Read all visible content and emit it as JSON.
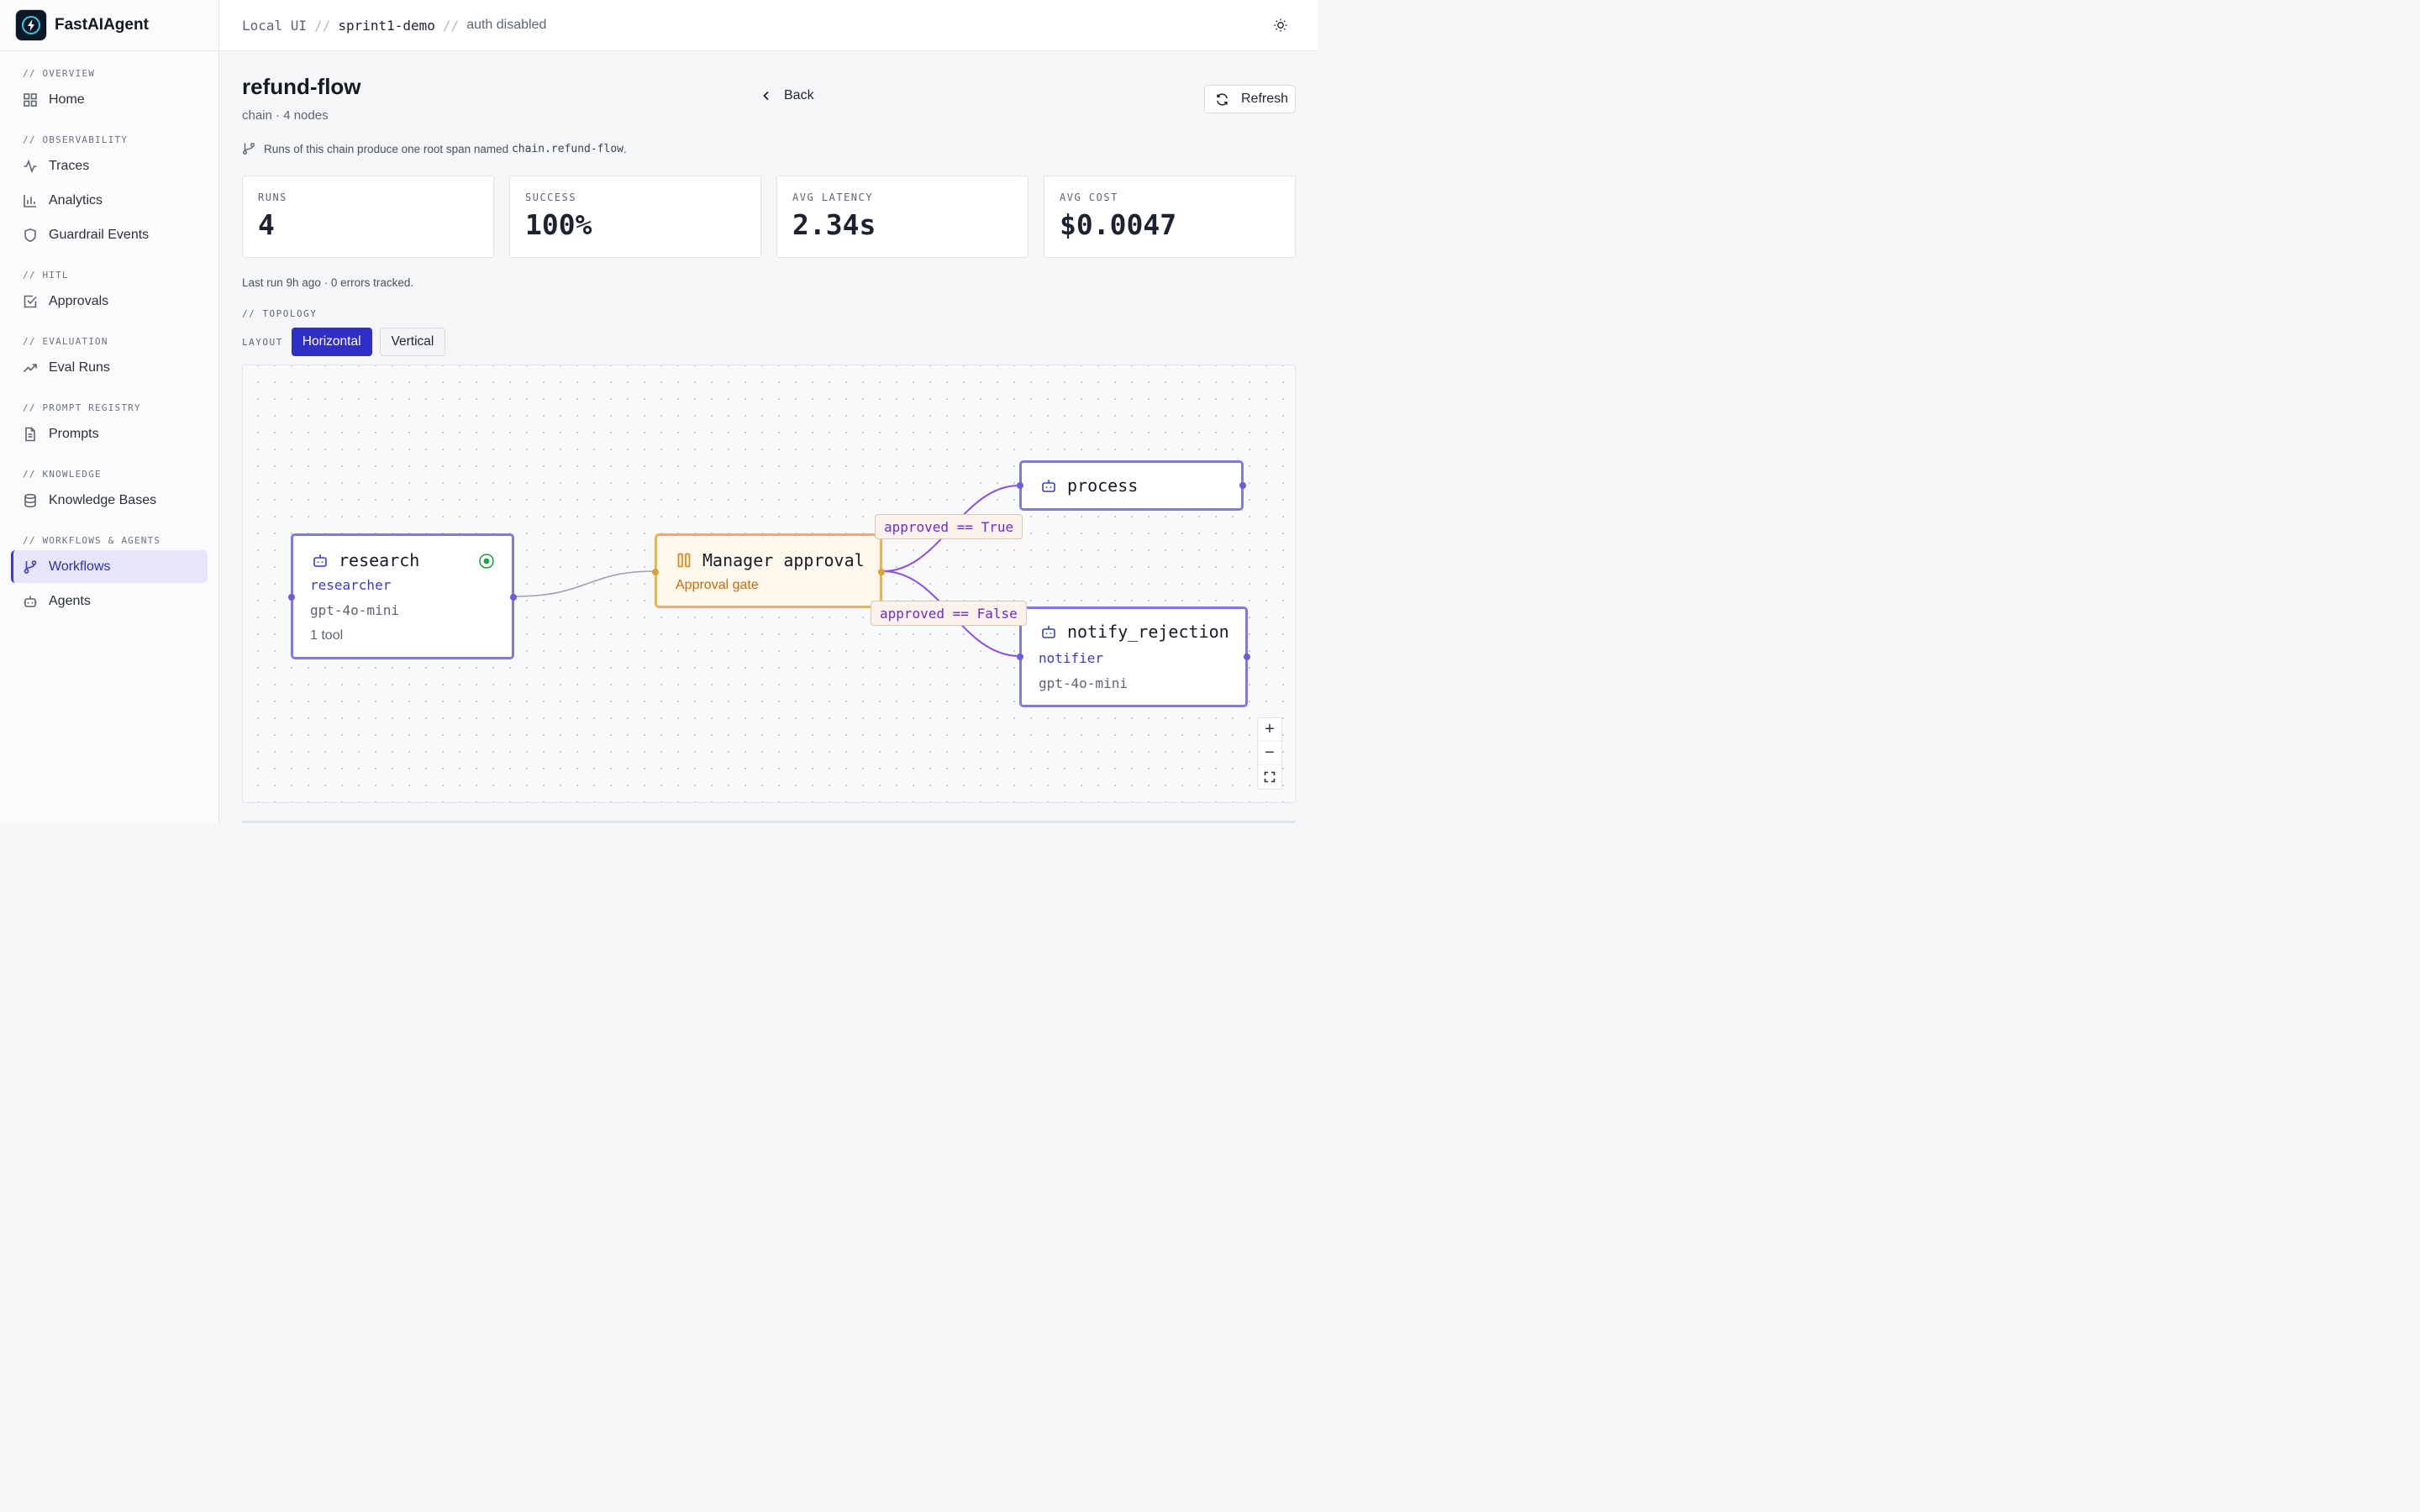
{
  "brand": {
    "name": "FastAIAgent"
  },
  "breadcrumb": {
    "part1": "Local UI",
    "sep": "//",
    "part2": "sprint1-demo",
    "part3": "auth disabled"
  },
  "sidebar": {
    "sections": [
      {
        "title": "// OVERVIEW",
        "items": [
          {
            "label": "Home",
            "icon": "grid-icon"
          }
        ]
      },
      {
        "title": "// OBSERVABILITY",
        "items": [
          {
            "label": "Traces",
            "icon": "activity-icon"
          },
          {
            "label": "Analytics",
            "icon": "bar-chart-icon"
          },
          {
            "label": "Guardrail Events",
            "icon": "shield-icon"
          }
        ]
      },
      {
        "title": "// HITL",
        "items": [
          {
            "label": "Approvals",
            "icon": "check-square-icon"
          }
        ]
      },
      {
        "title": "// EVALUATION",
        "items": [
          {
            "label": "Eval Runs",
            "icon": "trending-up-icon"
          }
        ]
      },
      {
        "title": "// PROMPT REGISTRY",
        "items": [
          {
            "label": "Prompts",
            "icon": "file-text-icon"
          }
        ]
      },
      {
        "title": "// KNOWLEDGE",
        "items": [
          {
            "label": "Knowledge Bases",
            "icon": "database-icon"
          }
        ]
      },
      {
        "title": "// WORKFLOWS & AGENTS",
        "items": [
          {
            "label": "Workflows",
            "icon": "git-branch-icon",
            "active": true
          },
          {
            "label": "Agents",
            "icon": "bot-icon"
          }
        ]
      }
    ]
  },
  "page": {
    "title": "refund-flow",
    "subtitle": "chain · 4 nodes",
    "back_label": "Back",
    "refresh_label": "Refresh",
    "info_prefix": "Runs of this chain produce one root span named",
    "info_code": "chain.refund-flow",
    "info_suffix": ".",
    "last_run": "Last run 9h ago · 0 errors tracked."
  },
  "stats": [
    {
      "label": "RUNS",
      "value": "4"
    },
    {
      "label": "SUCCESS",
      "value": "100%"
    },
    {
      "label": "AVG LATENCY",
      "value": "2.34s"
    },
    {
      "label": "AVG COST",
      "value": "$0.0047"
    }
  ],
  "topology": {
    "section_label": "// TOPOLOGY",
    "layout_label": "LAYOUT",
    "layout_options": [
      "Horizontal",
      "Vertical"
    ],
    "layout_selected": "Horizontal",
    "nodes": {
      "research": {
        "title": "research",
        "role": "researcher",
        "model": "gpt-4o-mini",
        "tools": "1 tool",
        "status": "active"
      },
      "approval": {
        "title": "Manager approval",
        "subtitle": "Approval gate"
      },
      "process": {
        "title": "process"
      },
      "notify": {
        "title": "notify_rejection",
        "role": "notifier",
        "model": "gpt-4o-mini"
      }
    },
    "edge_labels": {
      "approved_true": "approved == True",
      "approved_false": "approved == False"
    },
    "zoom_controls": [
      "+",
      "−",
      "fit"
    ]
  },
  "colors": {
    "accent": "#2f2fc7",
    "node_border": "#8279e0",
    "approval_border": "#f0b24a",
    "edge_branch": "#8b4fe6",
    "edge_plain": "#a0a3aa"
  }
}
